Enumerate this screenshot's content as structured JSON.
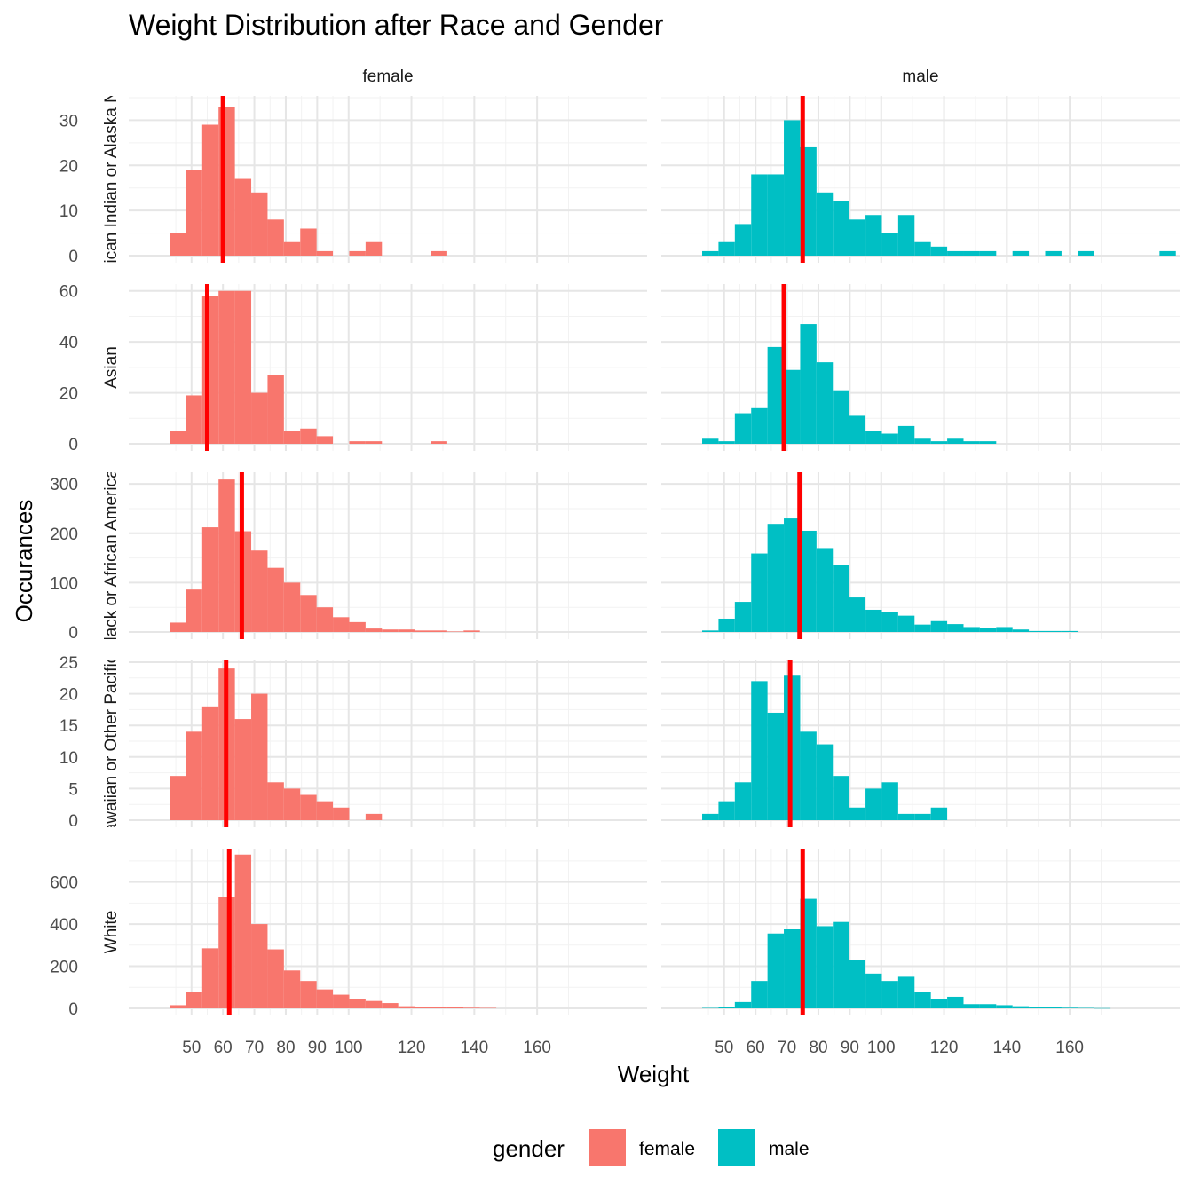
{
  "chart_data": {
    "type": "bar",
    "subtype": "faceted-histogram",
    "title": "Weight Distribution after Race and Gender",
    "xlabel": "Weight",
    "ylabel": "Occurances",
    "x_ticks": [
      50,
      60,
      70,
      80,
      90,
      100,
      120,
      140,
      160
    ],
    "xlim": [
      30,
      195
    ],
    "bin_start": 43,
    "bin_width": 5.2,
    "grid": true,
    "legend": {
      "title": "gender",
      "position": "bottom",
      "entries": [
        {
          "label": "female",
          "color": "#F8766D"
        },
        {
          "label": "male",
          "color": "#00BFC4"
        }
      ]
    },
    "mean_line_color": "#FF0000",
    "columns": [
      "female",
      "male"
    ],
    "rows": [
      {
        "label": "American Indian or Alaska Native",
        "ylim": [
          0,
          35
        ],
        "y_ticks": [
          0,
          10,
          20,
          30
        ],
        "female": {
          "mean": 60,
          "counts": [
            5,
            19,
            29,
            33,
            17,
            14,
            8,
            3,
            6,
            1,
            0,
            1,
            3,
            0,
            0,
            0,
            1
          ]
        },
        "male": {
          "mean": 75,
          "counts": [
            1,
            3,
            7,
            18,
            18,
            30,
            24,
            14,
            12,
            8,
            9,
            5,
            9,
            3,
            2,
            1,
            1,
            1,
            0,
            1,
            0,
            1,
            0,
            1,
            0,
            0,
            0,
            0,
            1
          ]
        }
      },
      {
        "label": "Asian",
        "ylim": [
          0,
          62
        ],
        "y_ticks": [
          0,
          20,
          40,
          60
        ],
        "female": {
          "mean": 55,
          "counts": [
            5,
            19,
            58,
            60,
            60,
            20,
            27,
            5,
            6,
            3,
            0,
            1,
            1,
            0,
            0,
            0,
            1
          ]
        },
        "male": {
          "mean": 69,
          "counts": [
            2,
            1,
            12,
            14,
            38,
            29,
            47,
            32,
            21,
            11,
            5,
            4,
            7,
            2,
            1,
            2,
            1,
            1
          ]
        }
      },
      {
        "label": "Black or African American",
        "ylim": [
          0,
          320
        ],
        "y_ticks": [
          0,
          100,
          200,
          300
        ],
        "female": {
          "mean": 66,
          "counts": [
            19,
            86,
            212,
            309,
            204,
            165,
            130,
            100,
            75,
            50,
            30,
            20,
            7,
            5,
            5,
            3,
            3,
            1,
            3
          ]
        },
        "male": {
          "mean": 74,
          "counts": [
            3,
            27,
            61,
            159,
            219,
            230,
            205,
            170,
            135,
            70,
            45,
            40,
            33,
            15,
            22,
            16,
            10,
            8,
            10,
            5,
            2,
            2,
            2
          ]
        }
      },
      {
        "label": "Native Hawaiian or Other Pacific Islander",
        "ylim": [
          0,
          25
        ],
        "y_ticks": [
          0,
          5,
          10,
          15,
          20,
          25
        ],
        "female": {
          "mean": 61,
          "counts": [
            7,
            14,
            18,
            24,
            16,
            20,
            6,
            5,
            4,
            3,
            2,
            0,
            1
          ]
        },
        "male": {
          "mean": 71,
          "counts": [
            1,
            3,
            6,
            22,
            17,
            23,
            14,
            12,
            7,
            2,
            5,
            6,
            1,
            1,
            2
          ]
        }
      },
      {
        "label": "White",
        "ylim": [
          0,
          750
        ],
        "y_ticks": [
          0,
          200,
          400,
          600
        ],
        "female": {
          "mean": 62,
          "counts": [
            15,
            80,
            285,
            530,
            730,
            400,
            280,
            180,
            130,
            90,
            65,
            45,
            35,
            25,
            10,
            5,
            5,
            5,
            3,
            2
          ]
        },
        "male": {
          "mean": 75,
          "counts": [
            2,
            5,
            30,
            130,
            355,
            375,
            520,
            390,
            410,
            230,
            165,
            130,
            150,
            80,
            45,
            55,
            20,
            20,
            15,
            10,
            5,
            5,
            3,
            2,
            1
          ]
        }
      }
    ]
  }
}
